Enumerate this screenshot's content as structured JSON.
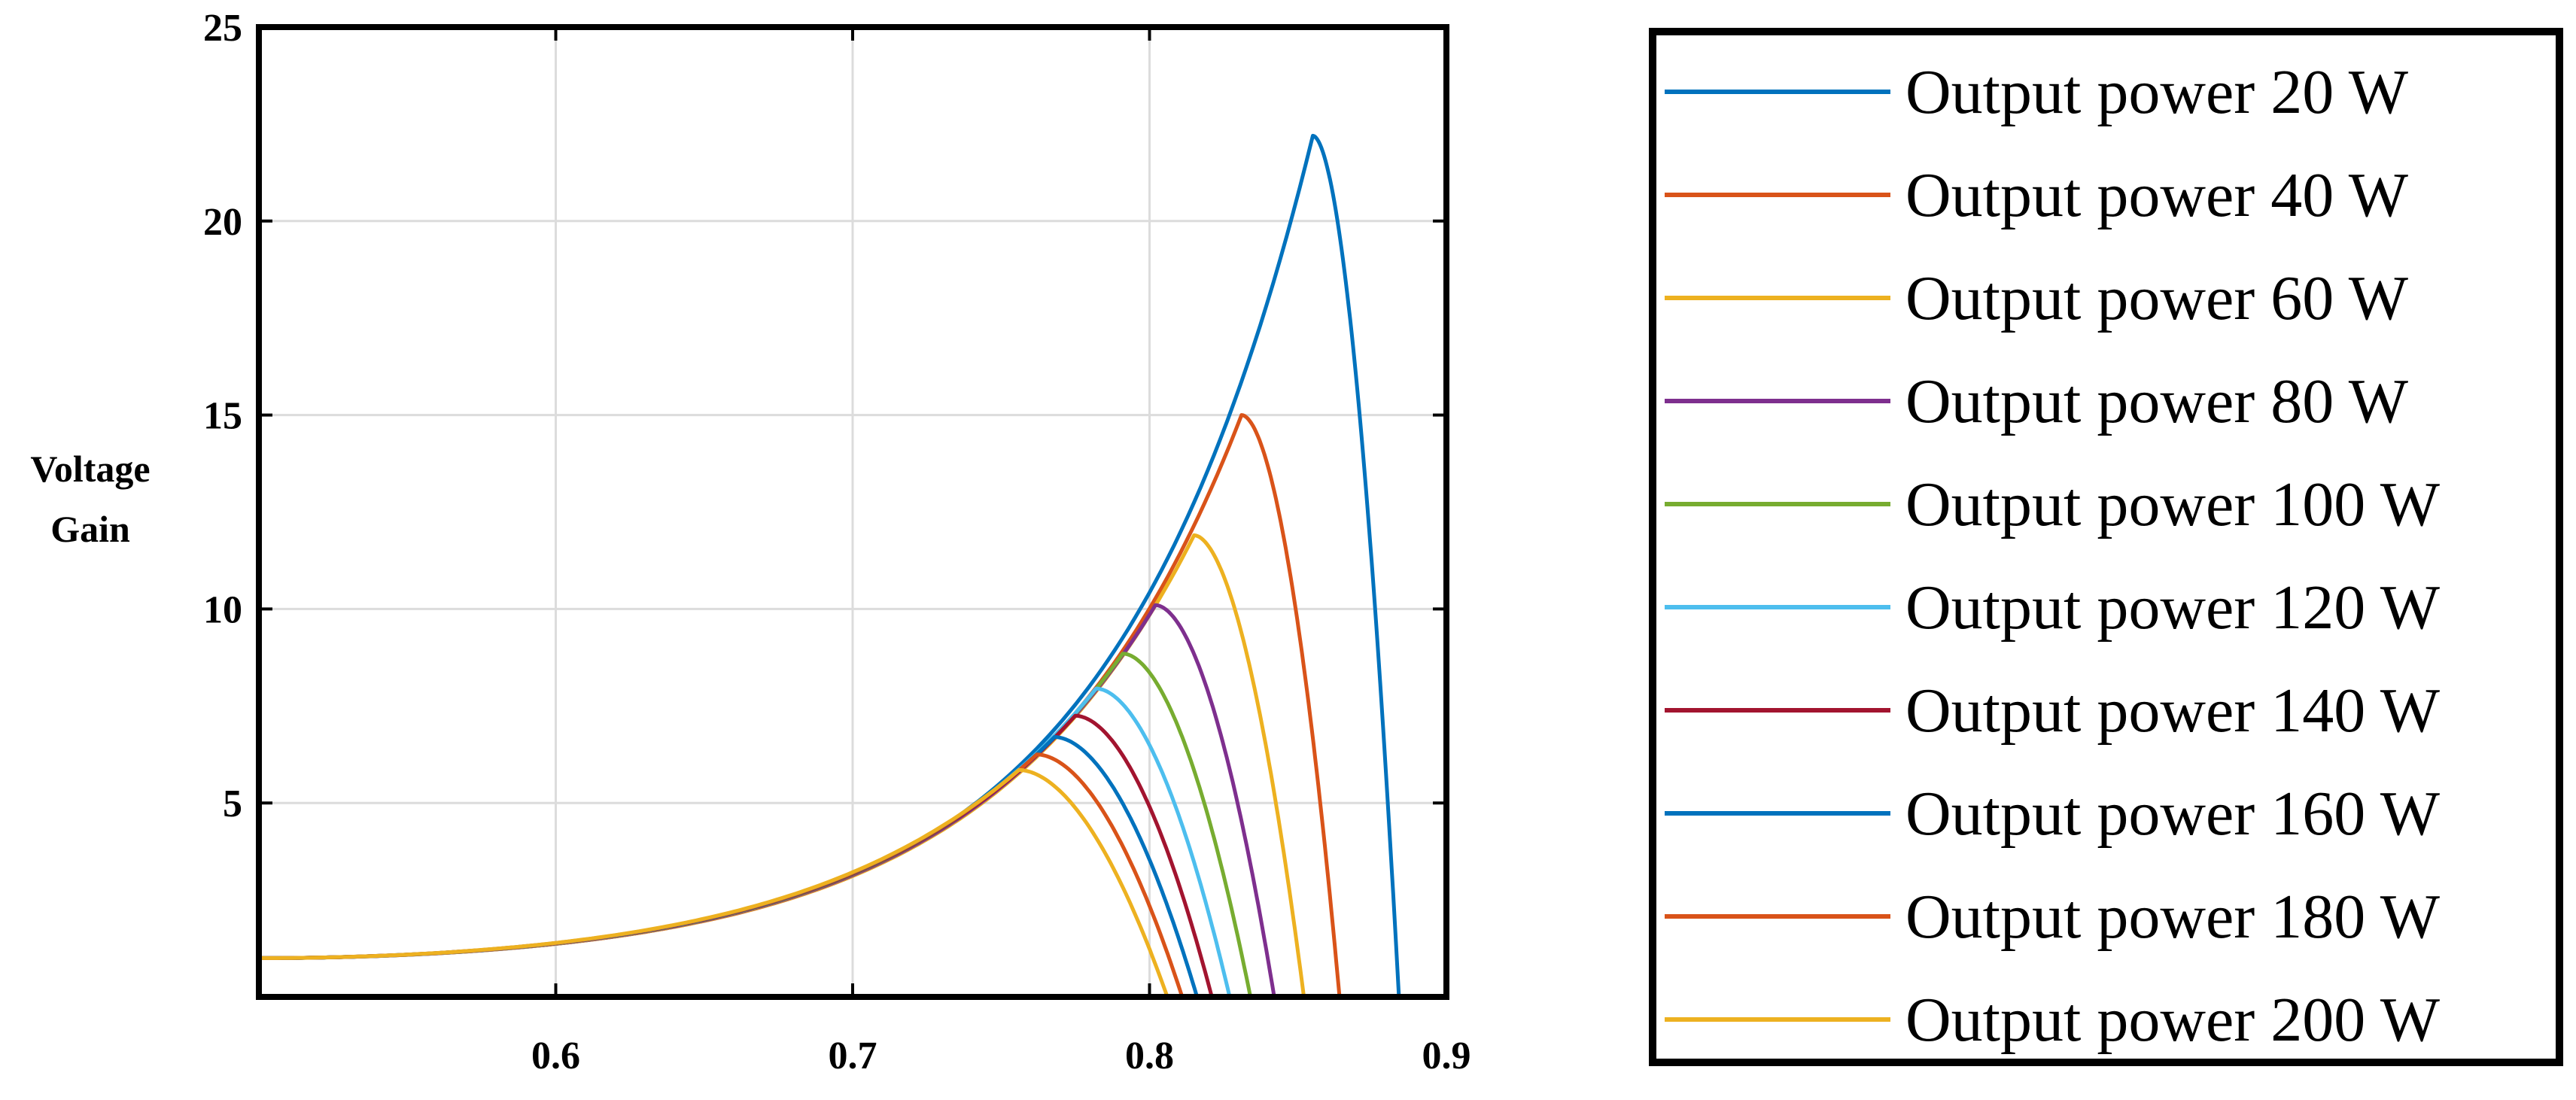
{
  "chart_data": {
    "type": "line",
    "title": "",
    "xlabel": "",
    "ylabel": "Voltage Gain",
    "ylabel_lines": [
      "Voltage",
      "Gain"
    ],
    "xlim": [
      0.5,
      0.9
    ],
    "ylim": [
      0,
      25
    ],
    "xticks": [
      0.6,
      0.7,
      0.8,
      0.9
    ],
    "xtick_labels": [
      "0.6",
      "0.7",
      "0.8",
      "0.9"
    ],
    "yticks": [
      5,
      10,
      15,
      20,
      25
    ],
    "ytick_labels": [
      "5",
      "10",
      "15",
      "20",
      "25"
    ],
    "grid": true,
    "legend_position": "right, outside plot area",
    "series": [
      {
        "name": "Output power 20 W",
        "color": "#0072BD",
        "start_gain": 1.0,
        "peak_x": 0.855,
        "peak_y": 22.2,
        "zero_x": 0.884
      },
      {
        "name": "Output power 40 W",
        "color": "#D95319",
        "start_gain": 1.0,
        "peak_x": 0.831,
        "peak_y": 15.0,
        "zero_x": 0.864
      },
      {
        "name": "Output power 60 W",
        "color": "#EDB120",
        "start_gain": 1.0,
        "peak_x": 0.815,
        "peak_y": 11.9,
        "zero_x": 0.852
      },
      {
        "name": "Output power 80 W",
        "color": "#7E2F8E",
        "start_gain": 1.0,
        "peak_x": 0.802,
        "peak_y": 10.1,
        "zero_x": 0.842
      },
      {
        "name": "Output power 100 W",
        "color": "#77AC30",
        "start_gain": 1.0,
        "peak_x": 0.791,
        "peak_y": 8.85,
        "zero_x": 0.834
      },
      {
        "name": "Output power 120 W",
        "color": "#4DBEEE",
        "start_gain": 1.0,
        "peak_x": 0.782,
        "peak_y": 7.95,
        "zero_x": 0.827
      },
      {
        "name": "Output power 140 W",
        "color": "#A2142F",
        "start_gain": 1.0,
        "peak_x": 0.775,
        "peak_y": 7.25,
        "zero_x": 0.821
      },
      {
        "name": "Output power 160 W",
        "color": "#0072BD",
        "start_gain": 1.0,
        "peak_x": 0.768,
        "peak_y": 6.7,
        "zero_x": 0.816
      },
      {
        "name": "Output power 180 W",
        "color": "#D95319",
        "start_gain": 1.0,
        "peak_x": 0.762,
        "peak_y": 6.25,
        "zero_x": 0.811
      },
      {
        "name": "Output power 200 W",
        "color": "#EDB120",
        "start_gain": 1.0,
        "peak_x": 0.756,
        "peak_y": 5.85,
        "zero_x": 0.806
      }
    ]
  }
}
